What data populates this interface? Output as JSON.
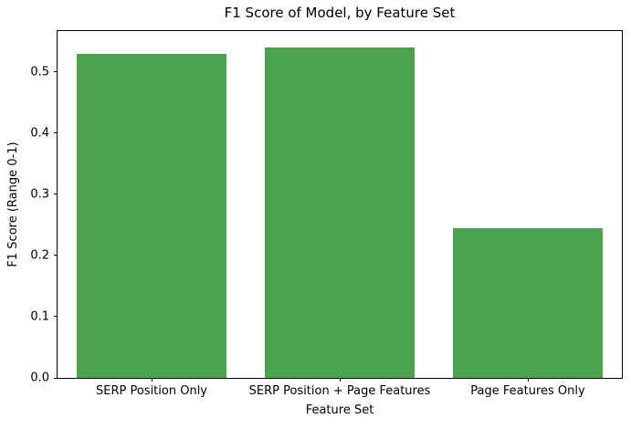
{
  "chart_data": {
    "type": "bar",
    "title": "F1 Score of Model, by Feature Set",
    "xlabel": "Feature Set",
    "ylabel": "F1 Score (Range 0-1)",
    "categories": [
      "SERP Position Only",
      "SERP Position + Page Features",
      "Page Features Only"
    ],
    "values": [
      0.53,
      0.54,
      0.245
    ],
    "ylim": [
      0,
      0.567
    ],
    "yticks": [
      0.0,
      0.1,
      0.2,
      0.3,
      0.4,
      0.5
    ],
    "ytick_decimals": 1,
    "bar_color": "#4ba34e",
    "bar_width_fraction": 0.8,
    "grid": false,
    "legend": "none",
    "axis_color": "#000000"
  }
}
